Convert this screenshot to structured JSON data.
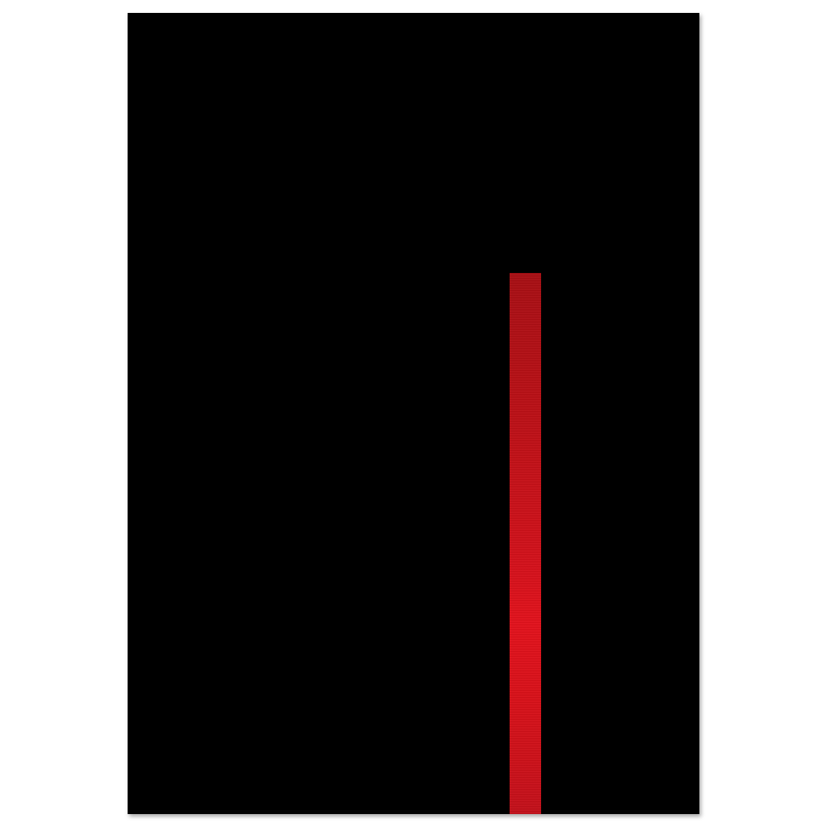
{
  "artwork": {
    "background_color": "#000000",
    "stripe_color": "#d0111a",
    "page_color": "#ffffff"
  }
}
